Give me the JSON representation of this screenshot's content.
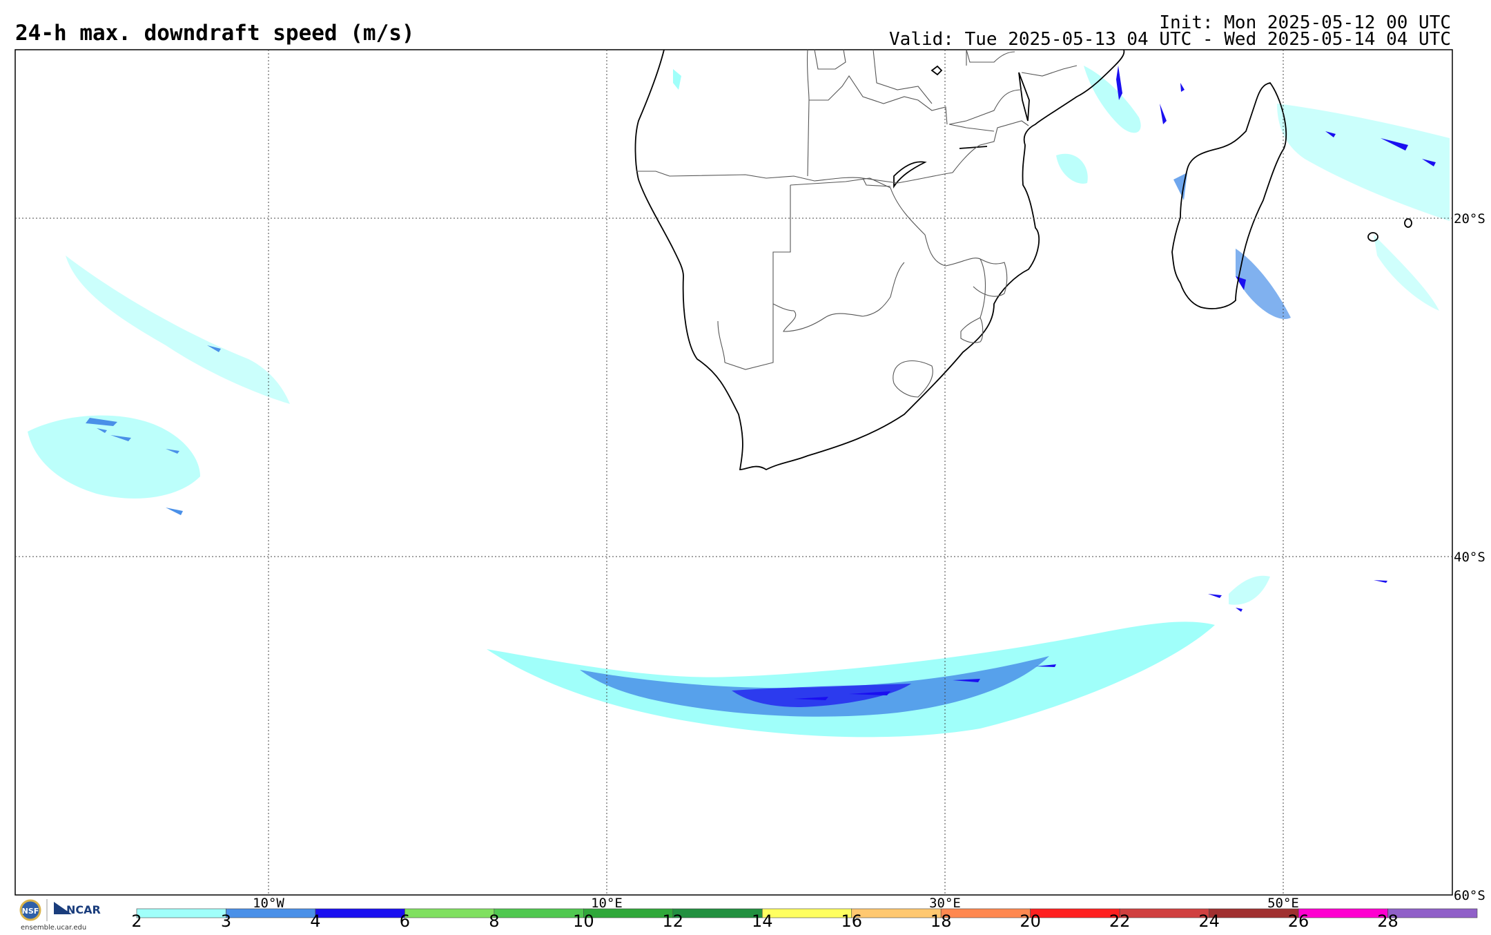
{
  "header": {
    "title": "24-h max. downdraft speed (m/s)",
    "init": "Init: Mon 2025-05-12 00 UTC",
    "valid": "Valid: Tue 2025-05-13 04 UTC - Wed 2025-05-14 04 UTC"
  },
  "map": {
    "lon_range": [
      -17.5,
      57.5
    ],
    "lat_range": [
      -60,
      -10
    ],
    "lat_labels": [
      {
        "lat": -20,
        "label": "20°S"
      },
      {
        "lat": -40,
        "label": "40°S"
      },
      {
        "lat": -60,
        "label": "60°S"
      }
    ],
    "lon_labels": [
      {
        "lon": -10,
        "label": "10°W"
      },
      {
        "lon": 10,
        "label": "10°E"
      },
      {
        "lon": 30,
        "label": "30°E"
      },
      {
        "lon": 50,
        "label": "50°E"
      }
    ],
    "gridlines": "dotted",
    "coastline_color": "#000000",
    "border_color": "#555555"
  },
  "colorbar": {
    "ticks": [
      "2",
      "3",
      "4",
      "6",
      "8",
      "10",
      "12",
      "14",
      "16",
      "18",
      "20",
      "22",
      "24",
      "26",
      "28"
    ],
    "colors": [
      "#a0fffa",
      "#4a90e8",
      "#1a0ff0",
      "#80e060",
      "#50c850",
      "#30a83a",
      "#229040",
      "#ffff60",
      "#ffc870",
      "#ff8850",
      "#ff2020",
      "#d04040",
      "#a03030",
      "#ff00d0",
      "#9060c8"
    ]
  },
  "logo": {
    "org1": "NSF",
    "org2": "NCAR",
    "url": "ensemble.ucar.edu"
  }
}
